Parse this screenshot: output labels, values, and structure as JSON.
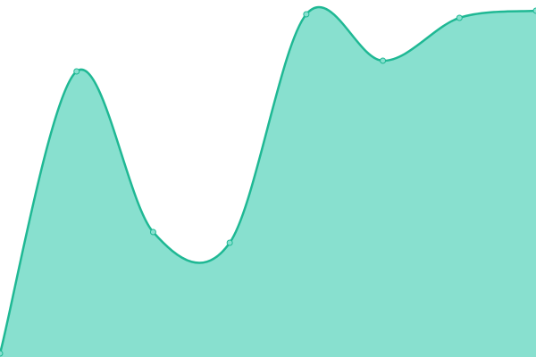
{
  "chart_data": {
    "type": "area",
    "values": [
      1,
      80,
      35,
      32,
      96,
      83,
      95,
      97
    ],
    "color": "#1fb894",
    "fill": "#88e0cf",
    "ylim": [
      0,
      100
    ]
  }
}
